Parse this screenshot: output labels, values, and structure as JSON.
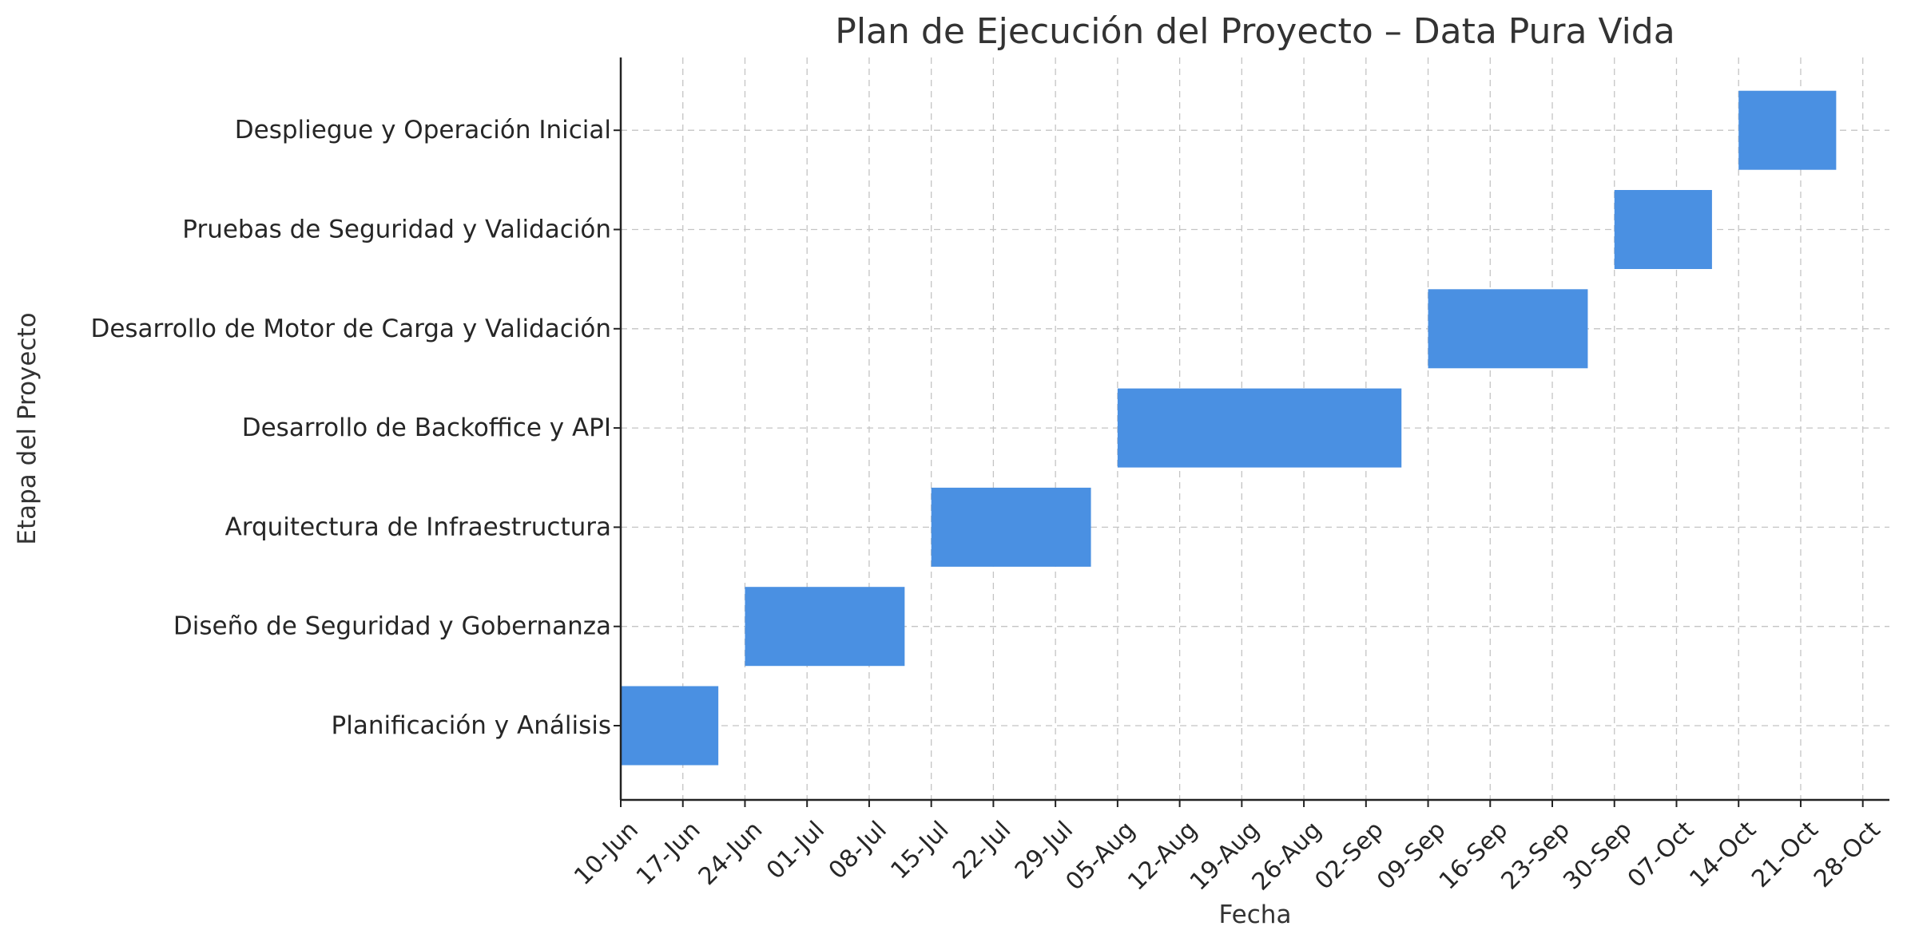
{
  "chart_data": {
    "type": "gantt",
    "title": "Plan de Ejecución del Proyecto – Data Pura Vida",
    "xlabel": "Fecha",
    "ylabel": "Etapa del Proyecto",
    "bar_color": "#4a90e2",
    "grid": true,
    "xlim": [
      "2024-06-10",
      "2024-10-31"
    ],
    "x_ticks": [
      {
        "date": "2024-06-10",
        "label": "10-Jun"
      },
      {
        "date": "2024-06-17",
        "label": "17-Jun"
      },
      {
        "date": "2024-06-24",
        "label": "24-Jun"
      },
      {
        "date": "2024-07-01",
        "label": "01-Jul"
      },
      {
        "date": "2024-07-08",
        "label": "08-Jul"
      },
      {
        "date": "2024-07-15",
        "label": "15-Jul"
      },
      {
        "date": "2024-07-22",
        "label": "22-Jul"
      },
      {
        "date": "2024-07-29",
        "label": "29-Jul"
      },
      {
        "date": "2024-08-05",
        "label": "05-Aug"
      },
      {
        "date": "2024-08-12",
        "label": "12-Aug"
      },
      {
        "date": "2024-08-19",
        "label": "19-Aug"
      },
      {
        "date": "2024-08-26",
        "label": "26-Aug"
      },
      {
        "date": "2024-09-02",
        "label": "02-Sep"
      },
      {
        "date": "2024-09-09",
        "label": "09-Sep"
      },
      {
        "date": "2024-09-16",
        "label": "16-Sep"
      },
      {
        "date": "2024-09-23",
        "label": "23-Sep"
      },
      {
        "date": "2024-09-30",
        "label": "30-Sep"
      },
      {
        "date": "2024-10-07",
        "label": "07-Oct"
      },
      {
        "date": "2024-10-14",
        "label": "14-Oct"
      },
      {
        "date": "2024-10-21",
        "label": "21-Oct"
      },
      {
        "date": "2024-10-28",
        "label": "28-Oct"
      }
    ],
    "tasks": [
      {
        "name": "Planificación y Análisis",
        "start": "2024-06-10",
        "end": "2024-06-21"
      },
      {
        "name": "Diseño de Seguridad y Gobernanza",
        "start": "2024-06-24",
        "end": "2024-07-12"
      },
      {
        "name": "Arquitectura de Infraestructura",
        "start": "2024-07-15",
        "end": "2024-08-02"
      },
      {
        "name": "Desarrollo de Backoffice y API",
        "start": "2024-08-05",
        "end": "2024-09-06"
      },
      {
        "name": "Desarrollo de Motor de Carga y Validación",
        "start": "2024-09-09",
        "end": "2024-09-27"
      },
      {
        "name": "Pruebas de Seguridad y Validación",
        "start": "2024-09-30",
        "end": "2024-10-11"
      },
      {
        "name": "Despliegue y Operación Inicial",
        "start": "2024-10-14",
        "end": "2024-10-25"
      }
    ]
  }
}
